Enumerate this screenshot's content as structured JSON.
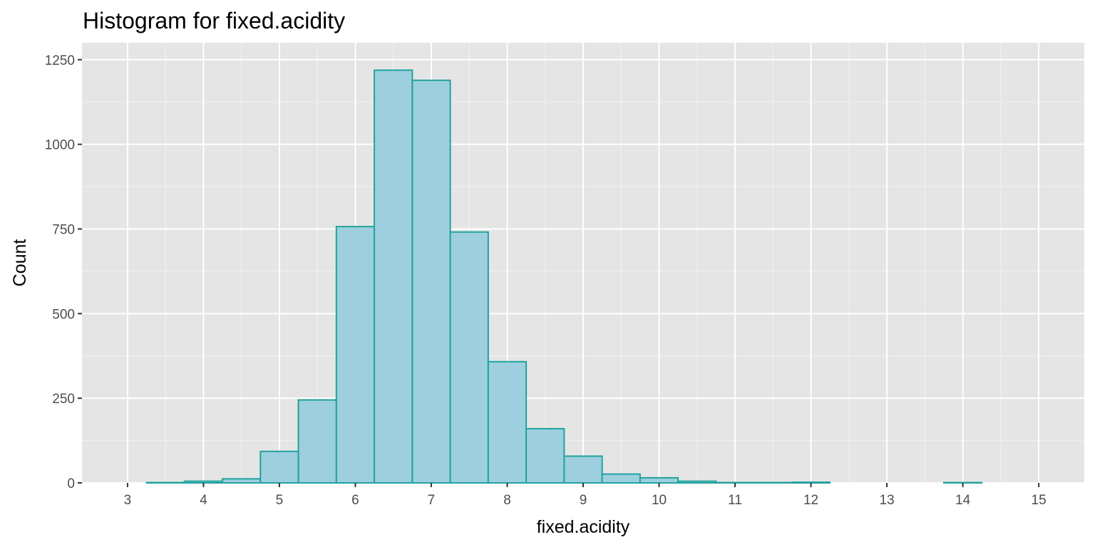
{
  "chart_data": {
    "type": "bar",
    "title": "Histogram for fixed.acidity",
    "xlabel": "fixed.acidity",
    "ylabel": "Count",
    "xlim": [
      2.4,
      15.6
    ],
    "ylim": [
      0,
      1300
    ],
    "xticks": [
      3,
      4,
      5,
      6,
      7,
      8,
      9,
      10,
      11,
      12,
      13,
      14,
      15
    ],
    "yticks": [
      0,
      250,
      500,
      750,
      1000,
      1250
    ],
    "bin_width": 0.5,
    "bins": [
      {
        "x0": 3.25,
        "x1": 3.75,
        "count": 1
      },
      {
        "x0": 3.75,
        "x1": 4.25,
        "count": 5
      },
      {
        "x0": 4.25,
        "x1": 4.75,
        "count": 12
      },
      {
        "x0": 4.75,
        "x1": 5.25,
        "count": 93
      },
      {
        "x0": 5.25,
        "x1": 5.75,
        "count": 245
      },
      {
        "x0": 5.75,
        "x1": 6.25,
        "count": 757
      },
      {
        "x0": 6.25,
        "x1": 6.75,
        "count": 1219
      },
      {
        "x0": 6.75,
        "x1": 7.25,
        "count": 1189
      },
      {
        "x0": 7.25,
        "x1": 7.75,
        "count": 741
      },
      {
        "x0": 7.75,
        "x1": 8.25,
        "count": 358
      },
      {
        "x0": 8.25,
        "x1": 8.75,
        "count": 160
      },
      {
        "x0": 8.75,
        "x1": 9.25,
        "count": 79
      },
      {
        "x0": 9.25,
        "x1": 9.75,
        "count": 26
      },
      {
        "x0": 9.75,
        "x1": 10.25,
        "count": 15
      },
      {
        "x0": 10.25,
        "x1": 10.75,
        "count": 5
      },
      {
        "x0": 10.75,
        "x1": 11.25,
        "count": 1
      },
      {
        "x0": 11.25,
        "x1": 11.75,
        "count": 1
      },
      {
        "x0": 11.75,
        "x1": 12.25,
        "count": 2
      },
      {
        "x0": 12.25,
        "x1": 12.75,
        "count": 0
      },
      {
        "x0": 12.75,
        "x1": 13.25,
        "count": 0
      },
      {
        "x0": 13.25,
        "x1": 13.75,
        "count": 0
      },
      {
        "x0": 13.75,
        "x1": 14.25,
        "count": 1
      },
      {
        "x0": 14.25,
        "x1": 14.75,
        "count": 0
      }
    ],
    "grid": true,
    "colors": {
      "fill": "#9ecfdf",
      "outline": "#20a39e",
      "panel": "#e5e5e5",
      "grid_major": "#ffffff",
      "grid_minor": "#f2f2f2"
    }
  }
}
